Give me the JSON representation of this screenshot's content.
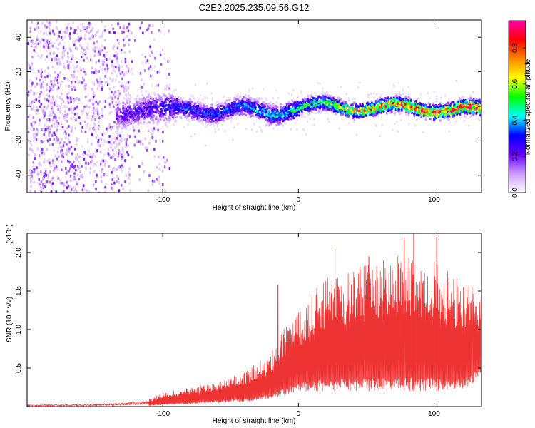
{
  "chart_data": [
    {
      "type": "heatmap",
      "title": "C2E2.2025.235.09.56.G12",
      "xlabel": "Height of straight line (km)",
      "ylabel": "Frequency (Hz)",
      "xlim": [
        -200,
        135
      ],
      "ylim": [
        -50,
        50
      ],
      "xticks": [
        -100,
        0,
        100
      ],
      "yticks": [
        -40,
        -20,
        0,
        20,
        40
      ],
      "colorbar": {
        "label": "Normalized spectral amplitude",
        "range": [
          0,
          0.95
        ],
        "ticks": [
          0.0,
          0.2,
          0.4,
          0.6,
          0.8
        ],
        "colors": [
          "#ffffff",
          "#cc99ff",
          "#6a00ff",
          "#0000ff",
          "#00ffff",
          "#00ff00",
          "#ffff00",
          "#ff8800",
          "#ff0000",
          "#ff00aa"
        ]
      },
      "ridge": [
        {
          "x": -190,
          "f": 0,
          "a": 0.1
        },
        {
          "x": -150,
          "f": -5,
          "a": 0.2
        },
        {
          "x": -120,
          "f": -1,
          "a": 0.25
        },
        {
          "x": -100,
          "f": -2,
          "a": 0.3
        },
        {
          "x": -80,
          "f": 0,
          "a": 0.35
        },
        {
          "x": -60,
          "f": -3,
          "a": 0.35
        },
        {
          "x": -40,
          "f": -1,
          "a": 0.4
        },
        {
          "x": -20,
          "f": -3,
          "a": 0.45
        },
        {
          "x": 0,
          "f": 0,
          "a": 0.5
        },
        {
          "x": 20,
          "f": 1,
          "a": 0.6
        },
        {
          "x": 40,
          "f": 0,
          "a": 0.7
        },
        {
          "x": 60,
          "f": 0,
          "a": 0.8
        },
        {
          "x": 80,
          "f": 0,
          "a": 0.85
        },
        {
          "x": 100,
          "f": -1,
          "a": 0.85
        },
        {
          "x": 120,
          "f": -1,
          "a": 0.9
        },
        {
          "x": 135,
          "f": -2,
          "a": 0.9
        }
      ]
    },
    {
      "type": "line",
      "xlabel": "Height of straight line (km)",
      "ylabel": "SNR (10 * v/v)",
      "yscale_label": "(x10⁴)",
      "xlim": [
        -200,
        135
      ],
      "ylim": [
        0,
        2.25
      ],
      "xticks": [
        -100,
        0,
        100
      ],
      "yticks": [
        0.5,
        1.0,
        1.5,
        2.0
      ],
      "yticklabels": [
        "0.5",
        "1.0",
        "1.5",
        "2.0"
      ],
      "color": "#ee3333",
      "envelope": {
        "x": [
          -200,
          -150,
          -125,
          -110,
          -100,
          -80,
          -60,
          -40,
          -20,
          -10,
          0,
          10,
          20,
          40,
          60,
          80,
          100,
          115,
          125,
          135
        ],
        "low": [
          0.0,
          0.0,
          0.0,
          0.01,
          0.02,
          0.03,
          0.05,
          0.06,
          0.1,
          0.15,
          0.2,
          0.2,
          0.2,
          0.2,
          0.2,
          0.2,
          0.2,
          0.2,
          0.25,
          0.4
        ],
        "high": [
          0.03,
          0.04,
          0.07,
          0.1,
          0.18,
          0.25,
          0.32,
          0.45,
          0.7,
          1.05,
          1.25,
          1.5,
          1.7,
          1.8,
          1.9,
          2.0,
          1.9,
          1.7,
          1.6,
          1.5
        ]
      },
      "spikes": [
        {
          "x": -15,
          "y": 1.58
        },
        {
          "x": 27,
          "y": 2.05
        },
        {
          "x": 52,
          "y": 1.95
        },
        {
          "x": 78,
          "y": 2.2
        },
        {
          "x": 85,
          "y": 2.25
        },
        {
          "x": 102,
          "y": 2.2
        },
        {
          "x": 128,
          "y": 1.55
        }
      ]
    }
  ]
}
